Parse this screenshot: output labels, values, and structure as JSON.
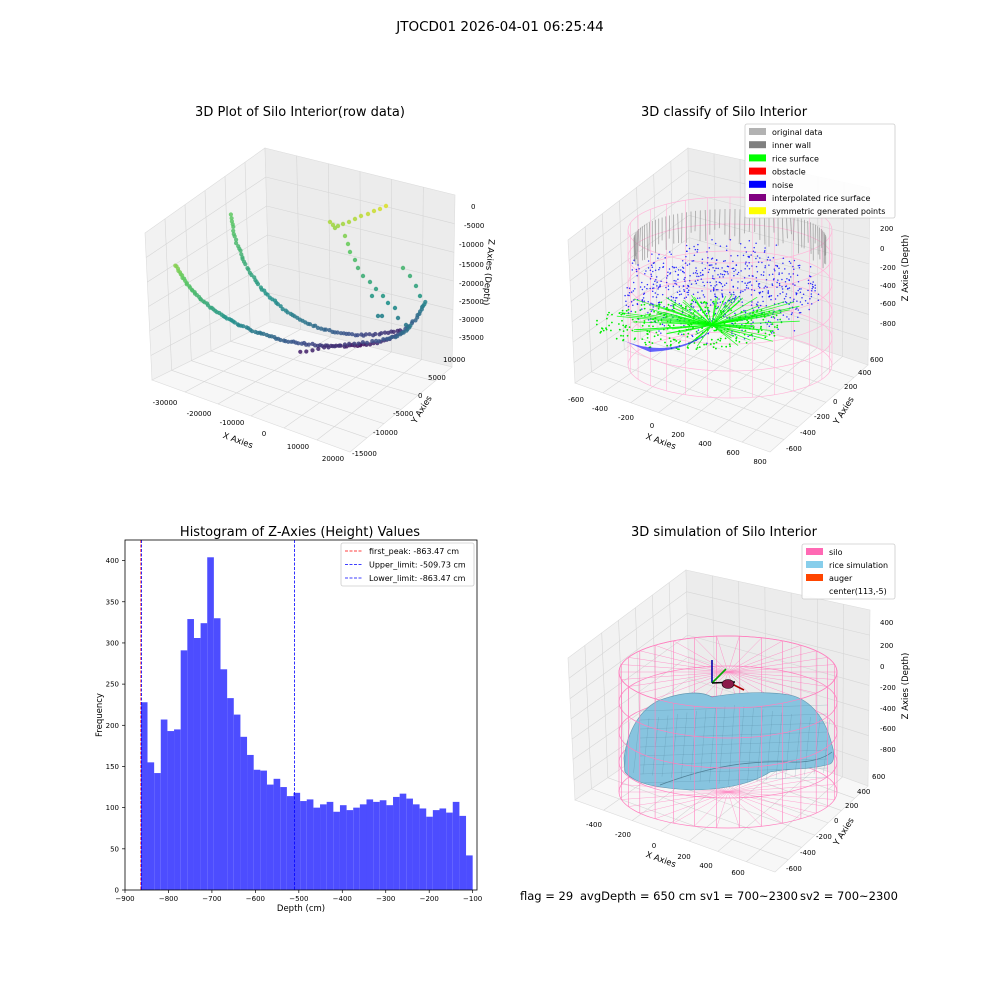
{
  "page": {
    "suptitle": "JTOCD01 2026-04-01 06:25:44",
    "footer": {
      "flag": "flag = 29",
      "avg_depth": "avgDepth = 650 cm",
      "sv1": "sv1 = 700~2300",
      "sv2": "sv2 = 700~2300"
    }
  },
  "chart_data": [
    {
      "id": "raw",
      "type": "scatter",
      "projection": "3d",
      "title": "3D Plot of Silo Interior(row data)",
      "xlabel": "X Axies",
      "ylabel": "Y Axies",
      "zlabel": "Z Axies (Depth)",
      "xticks": [
        "-30000",
        "-20000",
        "-10000",
        "0",
        "10000",
        "20000"
      ],
      "yticks": [
        "-15000",
        "-10000",
        "-5000",
        "0",
        "5000",
        "10000"
      ],
      "zticks": [
        "0",
        "-5000",
        "-10000",
        "-15000",
        "-20000",
        "-25000",
        "-30000",
        "-35000"
      ],
      "xlim": [
        -33000,
        22000
      ],
      "ylim": [
        -15000,
        12000
      ],
      "zlim": [
        -38000,
        2000
      ],
      "colormap": "viridis",
      "grid": true
    },
    {
      "id": "classify",
      "type": "scatter",
      "projection": "3d",
      "title": "3D classify of Silo Interior",
      "xlabel": "X Axies",
      "ylabel": "Y Axies",
      "zlabel": "Z Axies (Depth)",
      "xticks": [
        "-600",
        "-400",
        "-200",
        "0",
        "200",
        "400",
        "600",
        "800"
      ],
      "yticks": [
        "-600",
        "-400",
        "-200",
        "0",
        "200",
        "400",
        "600"
      ],
      "zticks": [
        "200",
        "0",
        "-200",
        "-400",
        "-600",
        "-800"
      ],
      "legend_position": "top-right",
      "legend": [
        {
          "label": "original data",
          "color": "#b2b2b2"
        },
        {
          "label": "inner wall",
          "color": "#7f7f7f"
        },
        {
          "label": "rice surface",
          "color": "#00ff00"
        },
        {
          "label": "obstacle",
          "color": "#ff0000"
        },
        {
          "label": "noise",
          "color": "#0000ff"
        },
        {
          "label": "interpolated rice surface",
          "color": "#800080"
        },
        {
          "label": "symmetric generated points",
          "color": "#ffff00"
        }
      ],
      "grid": true
    },
    {
      "id": "histogram",
      "type": "bar",
      "title": "Histogram of Z-Axies (Height) Values",
      "xlabel": "Depth (cm)",
      "ylabel": "Frequency",
      "xlim": [
        -900,
        -90
      ],
      "ylim": [
        0,
        425
      ],
      "xticks": [
        -900,
        -800,
        -700,
        -600,
        -500,
        -400,
        -300,
        -200,
        -100
      ],
      "yticks": [
        0,
        50,
        100,
        150,
        200,
        250,
        300,
        350,
        400
      ],
      "bin_start": -863.47,
      "bin_width": 15.27,
      "values": [
        228,
        155,
        142,
        207,
        193,
        195,
        291,
        329,
        306,
        324,
        404,
        330,
        268,
        233,
        213,
        186,
        164,
        146,
        145,
        128,
        135,
        125,
        114,
        118,
        108,
        110,
        100,
        104,
        107,
        95,
        103,
        97,
        100,
        104,
        110,
        107,
        109,
        103,
        113,
        117,
        111,
        104,
        99,
        89,
        97,
        99,
        94,
        107,
        90,
        42
      ],
      "bar_color": "#4d4dff",
      "lines": [
        {
          "label": "first_peak: -863.47 cm",
          "x": -863.47,
          "color": "#ff0000"
        },
        {
          "label": "Upper_limit: -509.73 cm",
          "x": -509.73,
          "color": "#0000ff"
        },
        {
          "label": "Lower_limit: -863.47 cm",
          "x": -863.47,
          "color": "#0000ff"
        }
      ],
      "legend_position": "top-right",
      "grid": false
    },
    {
      "id": "simulation",
      "type": "surface",
      "projection": "3d",
      "title": "3D simulation of Silo Interior",
      "xlabel": "X Axies",
      "ylabel": "Y Axies",
      "zlabel": "Z Axies (Depth)",
      "xticks": [
        "-400",
        "-200",
        "0",
        "200",
        "400",
        "600"
      ],
      "yticks": [
        "-600",
        "-400",
        "-200",
        "0",
        "200",
        "400",
        "600"
      ],
      "zticks": [
        "400",
        "200",
        "0",
        "-200",
        "-400",
        "-600",
        "-800"
      ],
      "legend_position": "top-right",
      "legend": [
        {
          "label": "silo",
          "color": "#ff69b4"
        },
        {
          "label": "rice simulation",
          "color": "#87ceeb"
        },
        {
          "label": "auger",
          "color": "#ff4500"
        },
        {
          "label": "center(113,-5)",
          "color": ""
        }
      ],
      "grid": true
    }
  ]
}
